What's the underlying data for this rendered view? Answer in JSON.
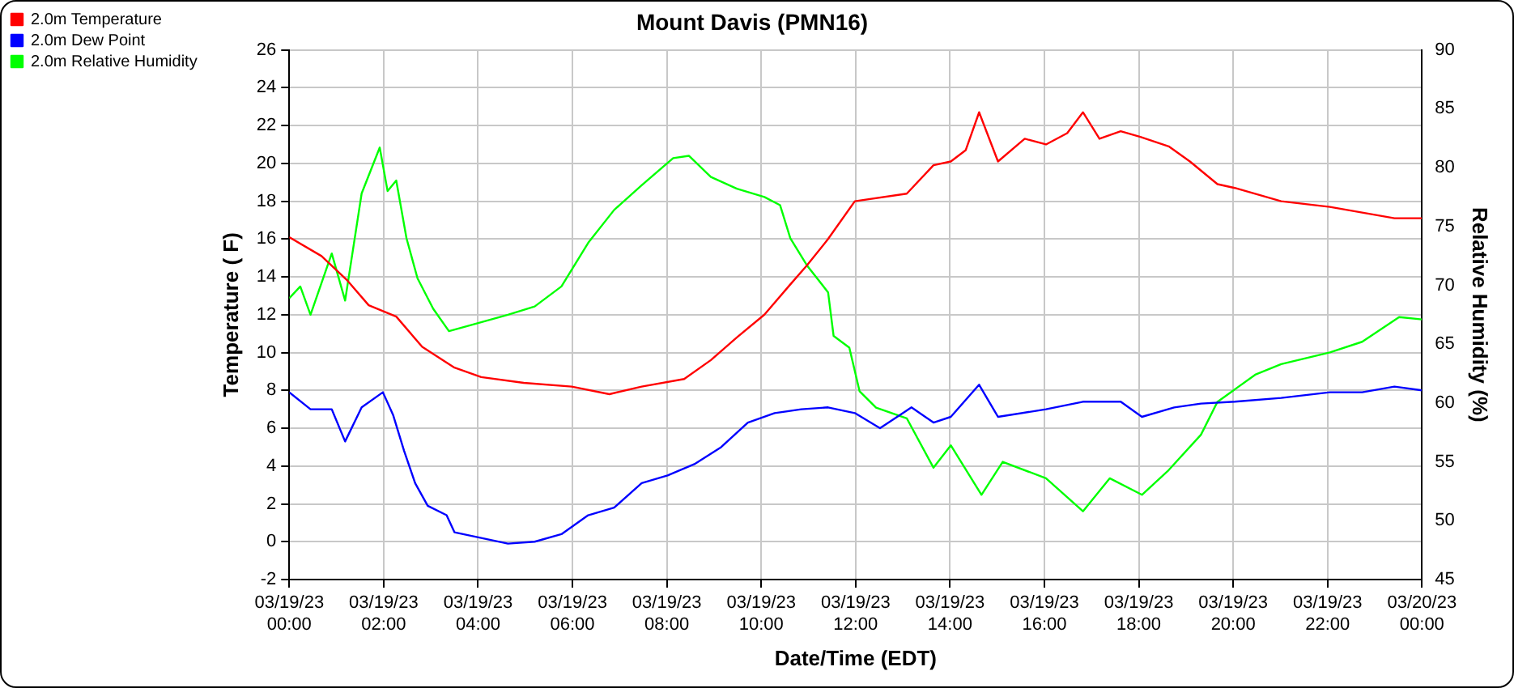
{
  "chart_data": {
    "type": "line",
    "title": "Mount Davis (PMN16)",
    "xlabel": "Date/Time (EDT)",
    "ylabel": "Temperature ( F)",
    "y2label": "Relative Humidity (%)",
    "xlim": [
      "--03-19T00:00",
      "--03-20T00:00"
    ],
    "xticks": [
      {
        "value": "--03-19T00:00",
        "label": "03/19/23 00:00"
      },
      {
        "value": "--03-19T02:00",
        "label": "03/19/23 02:00"
      },
      {
        "value": "--03-19T04:00",
        "label": "03/19/23 04:00"
      },
      {
        "value": "--03-19T06:00",
        "label": "03/19/23 06:00"
      },
      {
        "value": "--03-19T08:00",
        "label": "03/19/23 08:00"
      },
      {
        "value": "--03-19T10:00",
        "label": "03/19/23 10:00"
      },
      {
        "value": "--03-19T12:00",
        "label": "03/19/23 12:00"
      },
      {
        "value": "--03-19T14:00",
        "label": "03/19/23 14:00"
      },
      {
        "value": "--03-19T16:00",
        "label": "03/19/23 16:00"
      },
      {
        "value": "--03-19T18:00",
        "label": "03/19/23 18:00"
      },
      {
        "value": "--03-19T20:00",
        "label": "03/19/23 20:00"
      },
      {
        "value": "--03-19T22:00",
        "label": "03/19/23 22:00"
      },
      {
        "value": "--03-20T00:00",
        "label": "03/20/23 00:00"
      }
    ],
    "ylim": [
      -2,
      26
    ],
    "yticks": [
      -2,
      0,
      2,
      4,
      6,
      8,
      10,
      12,
      14,
      16,
      18,
      20,
      22,
      24,
      26
    ],
    "y2lim": [
      45,
      90
    ],
    "y2ticks": [
      45,
      50,
      55,
      60,
      65,
      70,
      75,
      80,
      85,
      90
    ],
    "grid": true,
    "legend": "top left",
    "marker": "none",
    "line_style": "solid",
    "series": [
      {
        "name": "2.0m Temperature",
        "color": "#ff0000",
        "x": [
          "--03-19T00:00",
          "--03-19T00:41",
          "--03-19T01:14",
          "--03-19T01:41",
          "--03-19T02:16",
          "--03-19T02:49",
          "--03-19T03:30",
          "--03-19T04:04",
          "--03-19T04:58",
          "--03-19T05:59",
          "--03-19T06:47",
          "--03-19T07:28",
          "--03-19T08:22",
          "--03-19T08:56",
          "--03-19T09:29",
          "--03-19T10:04",
          "--03-19T10:37",
          "--03-19T10:58",
          "--03-19T11:25",
          "--03-19T11:59",
          "--03-19T13:05",
          "--03-19T13:39",
          "--03-19T14:01",
          "--03-19T14:20",
          "--03-19T14:37",
          "--03-19T15:01",
          "--03-19T15:35",
          "--03-19T16:02",
          "--03-19T16:29",
          "--03-19T16:49",
          "--03-19T17:10",
          "--03-19T17:37",
          "--03-19T18:02",
          "--03-19T18:38",
          "--03-19T19:05",
          "--03-19T19:40",
          "--03-19T20:02",
          "--03-19T21:01",
          "--03-19T22:03",
          "--03-19T22:44",
          "--03-19T23:25",
          "--03-20T00:00"
        ],
        "values": [
          16.1,
          15.1,
          13.8,
          12.5,
          11.9,
          10.3,
          9.2,
          8.7,
          8.4,
          8.2,
          7.8,
          8.2,
          8.6,
          9.6,
          10.8,
          12.0,
          13.6,
          14.6,
          16.0,
          18.0,
          18.4,
          19.9,
          20.1,
          20.7,
          22.7,
          20.1,
          21.3,
          21.0,
          21.6,
          22.7,
          21.3,
          21.7,
          21.4,
          20.9,
          20.1,
          18.9,
          18.7,
          18.0,
          17.7,
          17.4,
          17.1,
          17.1
        ]
      },
      {
        "name": "2.0m Dew Point",
        "color": "#0000ff",
        "x": [
          "--03-19T00:00",
          "--03-19T00:27",
          "--03-19T00:54",
          "--03-19T01:11",
          "--03-19T01:32",
          "--03-19T01:59",
          "--03-19T02:12",
          "--03-19T02:26",
          "--03-19T02:40",
          "--03-19T02:56",
          "--03-19T03:20",
          "--03-19T03:30",
          "--03-19T04:04",
          "--03-19T04:38",
          "--03-19T05:12",
          "--03-19T05:46",
          "--03-19T06:20",
          "--03-19T06:53",
          "--03-19T07:28",
          "--03-19T08:01",
          "--03-19T08:35",
          "--03-19T09:09",
          "--03-19T09:43",
          "--03-19T10:17",
          "--03-19T10:51",
          "--03-19T11:25",
          "--03-19T11:59",
          "--03-19T12:31",
          "--03-19T13:11",
          "--03-19T13:39",
          "--03-19T14:01",
          "--03-19T14:37",
          "--03-19T15:01",
          "--03-19T16:02",
          "--03-19T16:49",
          "--03-19T17:37",
          "--03-19T18:04",
          "--03-19T18:45",
          "--03-19T19:19",
          "--03-19T20:02",
          "--03-19T21:01",
          "--03-19T22:03",
          "--03-19T22:44",
          "--03-19T23:25",
          "--03-20T00:00"
        ],
        "values": [
          7.9,
          7.0,
          7.0,
          5.3,
          7.1,
          7.9,
          6.7,
          4.8,
          3.1,
          1.9,
          1.4,
          0.5,
          0.2,
          -0.1,
          0.0,
          0.4,
          1.4,
          1.8,
          3.1,
          3.5,
          4.1,
          5.0,
          6.3,
          6.8,
          7.0,
          7.1,
          6.8,
          6.0,
          7.1,
          6.3,
          6.6,
          8.3,
          6.6,
          7.0,
          7.4,
          7.4,
          6.6,
          7.1,
          7.3,
          7.4,
          7.6,
          7.9,
          7.9,
          8.2,
          8.0
        ]
      },
      {
        "name": "2.0m Relative Humidity",
        "color": "#00ff00",
        "axis": "y2",
        "x": [
          "--03-19T00:00",
          "--03-19T00:14",
          "--03-19T00:27",
          "--03-19T00:54",
          "--03-19T01:11",
          "--03-19T01:32",
          "--03-19T01:55",
          "--03-19T02:05",
          "--03-19T02:16",
          "--03-19T02:29",
          "--03-19T02:43",
          "--03-19T03:03",
          "--03-19T03:23",
          "--03-19T03:50",
          "--03-19T04:38",
          "--03-19T05:12",
          "--03-19T05:46",
          "--03-19T06:20",
          "--03-19T06:53",
          "--03-19T07:28",
          "--03-19T08:08",
          "--03-19T08:28",
          "--03-19T08:56",
          "--03-19T09:29",
          "--03-19T10:04",
          "--03-19T10:24",
          "--03-19T10:37",
          "--03-19T10:58",
          "--03-19T11:25",
          "--03-19T11:32",
          "--03-19T11:52",
          "--03-19T12:05",
          "--03-19T12:26",
          "--03-19T13:05",
          "--03-19T13:39",
          "--03-19T14:01",
          "--03-19T14:40",
          "--03-19T15:07",
          "--03-19T16:02",
          "--03-19T16:49",
          "--03-19T17:23",
          "--03-19T18:04",
          "--03-19T18:38",
          "--03-19T19:19",
          "--03-19T19:40",
          "--03-19T20:28",
          "--03-19T21:01",
          "--03-19T22:03",
          "--03-19T22:44",
          "--03-19T23:31",
          "--03-20T00:00"
        ],
        "values": [
          68.9,
          69.9,
          67.5,
          72.7,
          68.7,
          77.8,
          81.7,
          78.0,
          78.9,
          74.0,
          70.6,
          68.0,
          66.1,
          66.6,
          67.5,
          68.2,
          69.9,
          73.6,
          76.4,
          78.5,
          80.8,
          81.0,
          79.2,
          78.2,
          77.5,
          76.8,
          74.0,
          71.7,
          69.4,
          65.7,
          64.7,
          61.0,
          59.6,
          58.7,
          54.5,
          56.4,
          52.2,
          55.0,
          53.6,
          50.8,
          53.6,
          52.2,
          54.3,
          57.3,
          60.1,
          62.4,
          63.3,
          64.3,
          65.2,
          67.3,
          67.1
        ]
      }
    ]
  }
}
